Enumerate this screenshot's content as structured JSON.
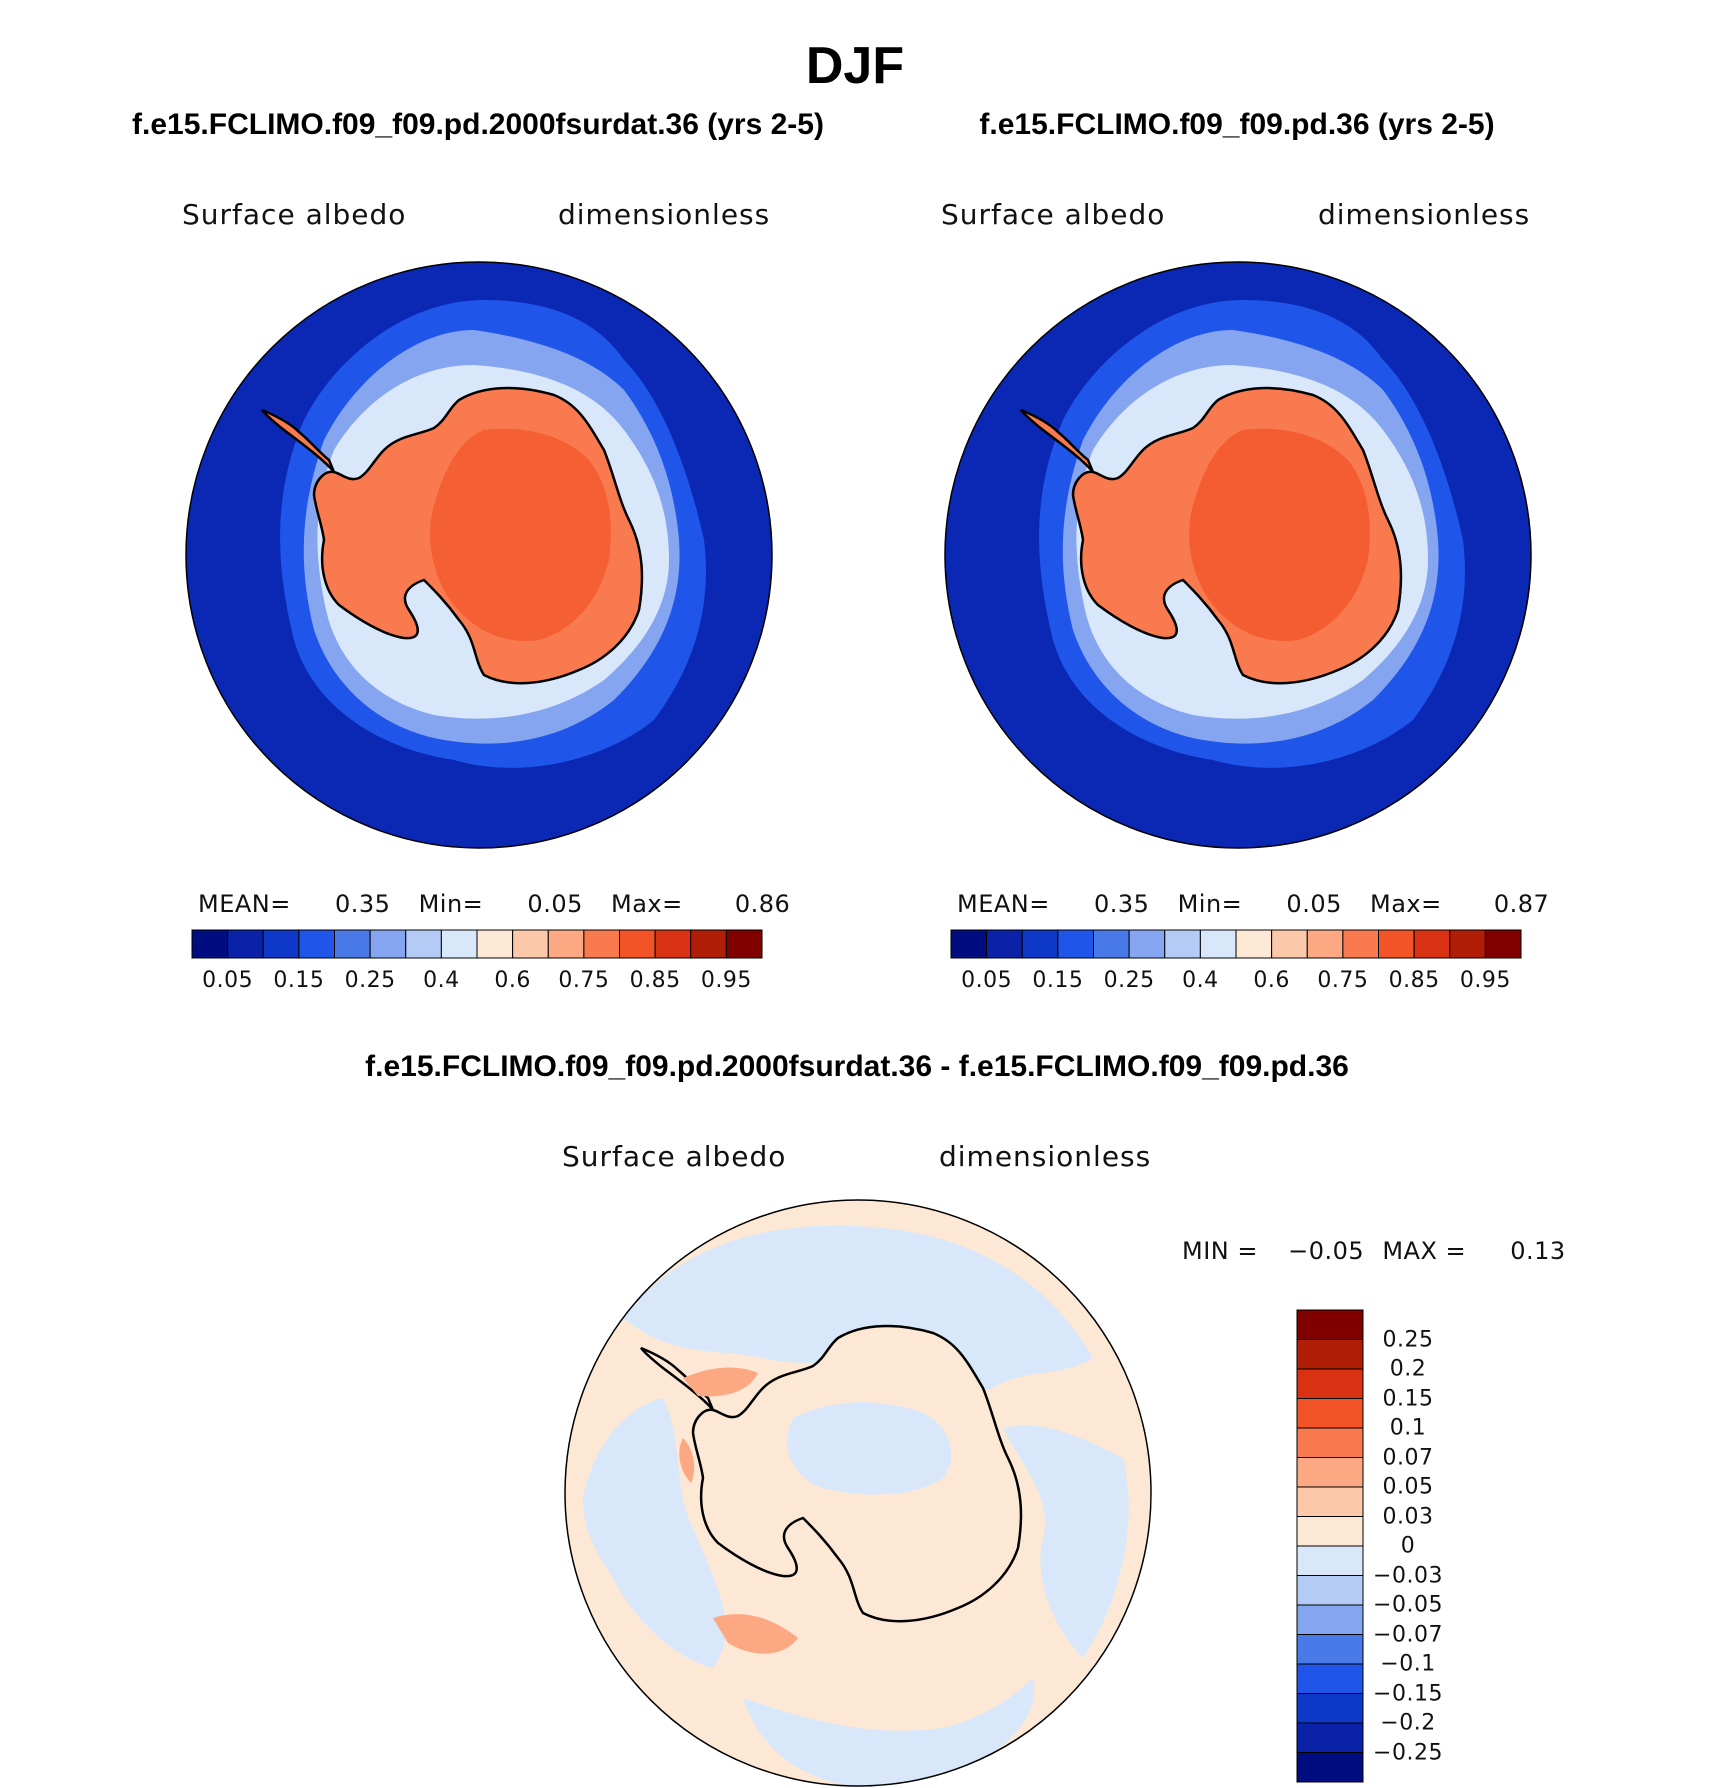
{
  "page_title": "DJF",
  "panels": [
    {
      "case": "f.e15.FCLIMO.f09_f09.pd.2000fsurdat.36 (yrs 2-5)",
      "variable": "Surface albedo",
      "units": "dimensionless",
      "stats": {
        "mean_label": "MEAN=",
        "mean": "0.35",
        "min_label": "Min=",
        "min": "0.05",
        "max_label": "Max=",
        "max": "0.86"
      }
    },
    {
      "case": "f.e15.FCLIMO.f09_f09.pd.36 (yrs 2-5)",
      "variable": "Surface albedo",
      "units": "dimensionless",
      "stats": {
        "mean_label": "MEAN=",
        "mean": "0.35",
        "min_label": "Min=",
        "min": "0.05",
        "max_label": "Max=",
        "max": "0.87"
      }
    }
  ],
  "diff_panel": {
    "title": "f.e15.FCLIMO.f09_f09.pd.2000fsurdat.36 - f.e15.FCLIMO.f09_f09.pd.36",
    "variable": "Surface albedo",
    "units": "dimensionless",
    "stats": {
      "min_label": "MIN =",
      "min": "−0.05",
      "max_label": "MAX =",
      "max": "0.13"
    }
  },
  "colorbar_abs": {
    "colors": [
      "#000d80",
      "#0a22a8",
      "#0d38c8",
      "#1f55e8",
      "#4a7ae8",
      "#86a5f0",
      "#b3cbf5",
      "#d8e8fa",
      "#fde8d6",
      "#fcc8aa",
      "#fba883",
      "#f87a4e",
      "#f25428",
      "#d83212",
      "#b01e08",
      "#800000"
    ],
    "tick_labels": [
      "0.05",
      "0.15",
      "0.25",
      "0.4",
      "0.6",
      "0.75",
      "0.85",
      "0.95"
    ]
  },
  "colorbar_diff": {
    "colors": [
      "#000d80",
      "#0a22a8",
      "#0d38c8",
      "#1f55e8",
      "#4a7ae8",
      "#86a5f0",
      "#b3cbf5",
      "#d8e8fa",
      "#fde8d6",
      "#fcc8aa",
      "#fba883",
      "#f87a4e",
      "#f25428",
      "#d83212",
      "#b01e08",
      "#800000"
    ],
    "tick_labels": [
      "−0.25",
      "−0.2",
      "−0.15",
      "−0.1",
      "−0.07",
      "−0.05",
      "−0.03",
      "0",
      "0.03",
      "0.05",
      "0.07",
      "0.1",
      "0.15",
      "0.2",
      "0.25"
    ]
  },
  "colors": {
    "ocean": "#0a28b4",
    "ice_ring_1": "#1f55e8",
    "ice_ring_2": "#86a5f0",
    "ice_ring_3": "#d8e8fa",
    "land": "#f87a4e",
    "land_high": "#f25428",
    "diff_pos": "#fde8d6",
    "diff_neg": "#d8e8fa",
    "diff_peak": "#f87a4e",
    "coast": "#000000"
  }
}
